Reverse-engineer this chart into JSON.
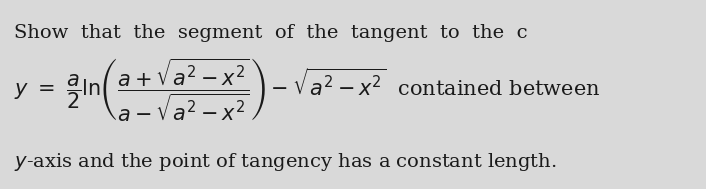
{
  "background_color": "#d9d9d9",
  "text_color": "#1a1a1a",
  "figsize": [
    7.06,
    1.89
  ],
  "dpi": 100,
  "line1": "Show  that  the  segment  of  the  tangent  to  the  c",
  "line3": "$y$-axis and the point of tangency has a constant length.",
  "formula": "$y \\ = \\ \\dfrac{a}{2} \\ln\\!\\left(\\dfrac{a+\\sqrt{a^2-x^2}}{a-\\sqrt{a^2-x^2}}\\right) - \\sqrt{a^2-x^2}$  contained between",
  "font_size_text": 14,
  "font_size_formula": 15
}
